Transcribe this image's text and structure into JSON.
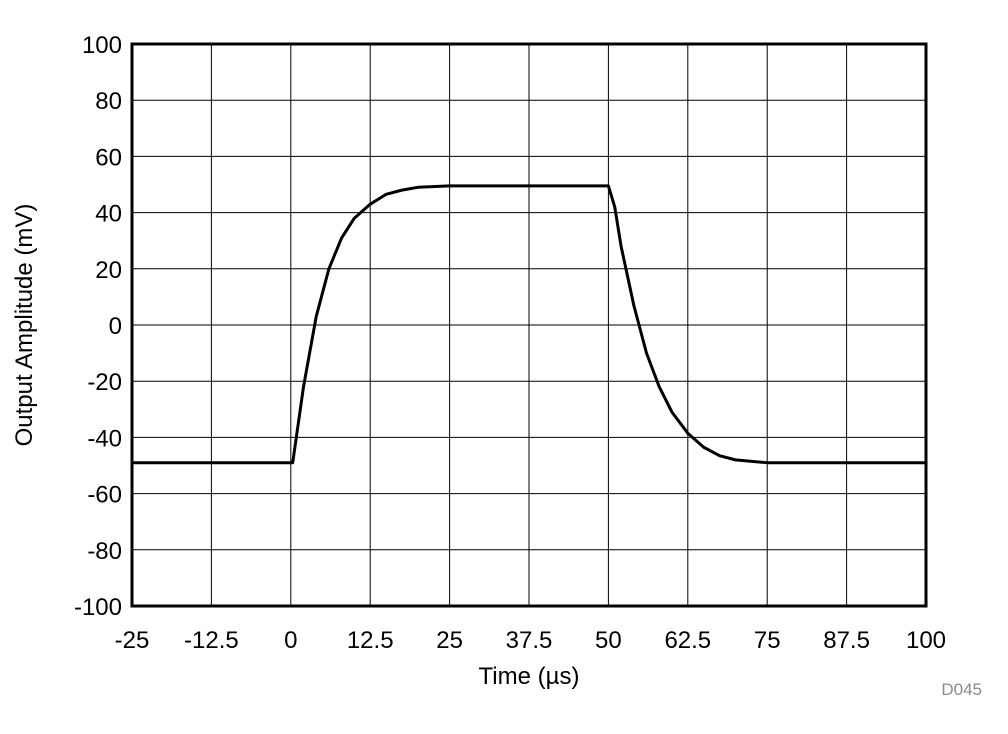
{
  "chart_data": {
    "type": "line",
    "xlabel": "Time (µs)",
    "ylabel": "Output Amplitude (mV)",
    "xlim": [
      -25,
      100
    ],
    "ylim": [
      -100,
      100
    ],
    "x_ticks": [
      -25,
      -12.5,
      0,
      12.5,
      25,
      37.5,
      50,
      62.5,
      75,
      87.5,
      100
    ],
    "x_tick_labels": [
      "-25",
      "-12.5",
      "0",
      "12.5",
      "25",
      "37.5",
      "50",
      "62.5",
      "75",
      "87.5",
      "100"
    ],
    "y_ticks": [
      100,
      80,
      60,
      40,
      20,
      0,
      -20,
      -40,
      -60,
      -80,
      -100
    ],
    "y_tick_labels": [
      "100",
      "80",
      "60",
      "40",
      "20",
      "0",
      "-20",
      "-40",
      "-60",
      "-80",
      "-100"
    ],
    "grid": true,
    "series": [
      {
        "x": [
          -25,
          -20,
          -15,
          -10,
          -5,
          0,
          0.3,
          2,
          4,
          6,
          8,
          10,
          12.5,
          15,
          17.5,
          20,
          25,
          30,
          37.5,
          45,
          49.8,
          50,
          51,
          52,
          54,
          56,
          58,
          60,
          62.5,
          65,
          67.5,
          70,
          75,
          80,
          87.5,
          95,
          100
        ],
        "y": [
          -49,
          -49,
          -49,
          -49,
          -49,
          -49,
          -49,
          -22,
          3,
          20,
          31,
          38,
          43,
          46.5,
          48,
          49,
          49.5,
          49.5,
          49.5,
          49.5,
          49.5,
          49.5,
          42,
          28,
          7,
          -10,
          -22,
          -31,
          -38.5,
          -43.5,
          -46.5,
          -48,
          -49,
          -49,
          -49,
          -49,
          -49
        ]
      }
    ]
  },
  "figure_code": "D045"
}
